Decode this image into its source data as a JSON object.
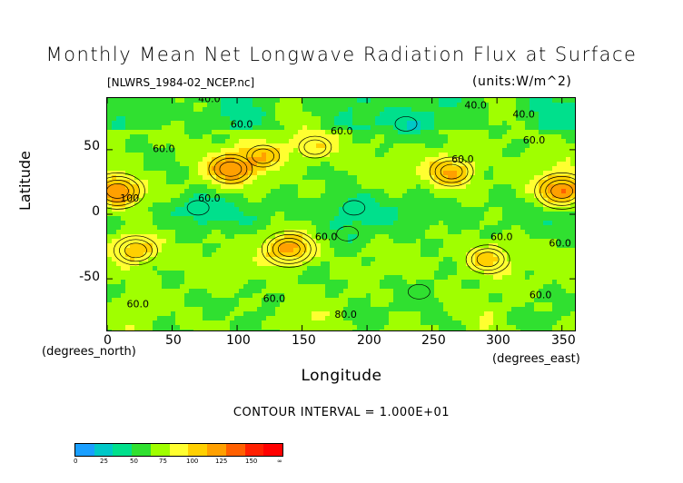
{
  "title": "Monthly Mean Net Longwave Radiation Flux at Surface",
  "file_label": "[NLWRS_1984-02_NCEP.nc]",
  "units_label": "(units:W/m^2)",
  "x_axis": {
    "title": "Longitude",
    "unit_label": "(degrees_east)",
    "ticks": [
      "0",
      "50",
      "100",
      "150",
      "200",
      "250",
      "300",
      "350"
    ]
  },
  "y_axis": {
    "title": "Latitude",
    "unit_label": "(degrees_north)",
    "ticks": [
      "50",
      "0",
      "-50"
    ]
  },
  "contour_interval": "CONTOUR INTERVAL = 1.000E+01",
  "colorbar": {
    "colors": [
      "#1a9fff",
      "#00c8c8",
      "#00e08c",
      "#30e030",
      "#a0ff00",
      "#ffff30",
      "#ffd000",
      "#ffa000",
      "#ff6000",
      "#ff2000",
      "#ff0000"
    ],
    "labels": [
      "0",
      "25",
      "50",
      "75",
      "100",
      "125",
      "150",
      "∞"
    ]
  },
  "contour_labels": [
    "40.0",
    "40.0",
    "60.0",
    "60.0",
    "60.0",
    "60.0",
    "60.0",
    "40.0",
    "60.0",
    "100",
    "60.0",
    "60.0",
    "60.0",
    "60.0",
    "60.0",
    "60.0",
    "80.0",
    "60.0"
  ],
  "chart_data": {
    "type": "heatmap",
    "title": "Monthly Mean Net Longwave Radiation Flux at Surface",
    "xlabel": "Longitude",
    "ylabel": "Latitude",
    "xlim": [
      0,
      360
    ],
    "ylim": [
      -90,
      90
    ],
    "x_ticks": [
      0,
      50,
      100,
      150,
      200,
      250,
      300,
      350
    ],
    "y_ticks": [
      -50,
      0,
      50
    ],
    "units": "W/m^2",
    "contour_interval": 10,
    "color_levels": [
      0,
      25,
      50,
      75,
      100,
      125,
      150
    ],
    "regions": [
      {
        "lon": 8,
        "lat": 18,
        "value": 125
      },
      {
        "lon": 350,
        "lat": 18,
        "value": 125
      },
      {
        "lon": 95,
        "lat": 35,
        "value": 110
      },
      {
        "lon": 120,
        "lat": 45,
        "value": 95
      },
      {
        "lon": 160,
        "lat": 52,
        "value": 90
      },
      {
        "lon": 265,
        "lat": 33,
        "value": 110
      },
      {
        "lon": 140,
        "lat": -27,
        "value": 115
      },
      {
        "lon": 22,
        "lat": -28,
        "value": 105
      },
      {
        "lon": 293,
        "lat": -35,
        "value": 100
      },
      {
        "lon": 70,
        "lat": 5,
        "value": 45
      },
      {
        "lon": 190,
        "lat": 5,
        "value": 45
      },
      {
        "lon": 185,
        "lat": -15,
        "value": 50
      },
      {
        "lon": 230,
        "lat": 70,
        "value": 40
      },
      {
        "lon": 240,
        "lat": -60,
        "value": 55
      }
    ]
  }
}
